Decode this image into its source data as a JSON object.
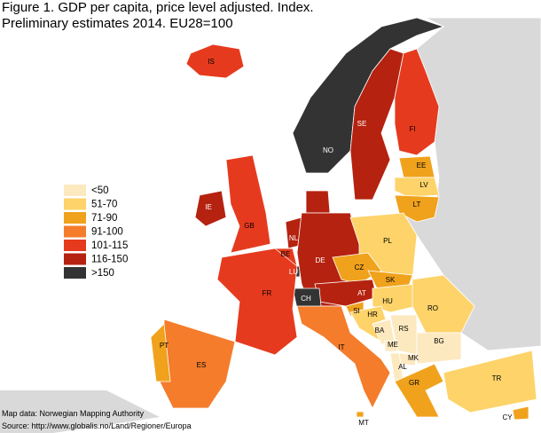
{
  "title": [
    "Figure 1. GDP per capita, price level adjusted. Index.",
    "Preliminary estimates 2014. EU28=100"
  ],
  "legend": [
    {
      "label": "<50",
      "color": "#fde9c0"
    },
    {
      "label": "51-70",
      "color": "#fdd36a"
    },
    {
      "label": "71-90",
      "color": "#f0a21c"
    },
    {
      "label": "91-100",
      "color": "#f47c2b"
    },
    {
      "label": "101-115",
      "color": "#e63a1e"
    },
    {
      "label": "116-150",
      "color": "#b5220f"
    },
    {
      "label": ">150",
      "color": "#333333"
    }
  ],
  "countries": [
    {
      "code": "IS",
      "color": "#e63a1e"
    },
    {
      "code": "NO",
      "color": "#333333"
    },
    {
      "code": "SE",
      "color": "#b5220f"
    },
    {
      "code": "FI",
      "color": "#e63a1e"
    },
    {
      "code": "EE",
      "color": "#f0a21c"
    },
    {
      "code": "LV",
      "color": "#fdd36a"
    },
    {
      "code": "LT",
      "color": "#f0a21c"
    },
    {
      "code": "IE",
      "color": "#b5220f"
    },
    {
      "code": "GB",
      "color": "#e63a1e"
    },
    {
      "code": "NL",
      "color": "#b5220f"
    },
    {
      "code": "BE",
      "color": "#e63a1e"
    },
    {
      "code": "LU",
      "color": "#333333"
    },
    {
      "code": "DE",
      "color": "#b5220f"
    },
    {
      "code": "PL",
      "color": "#fdd36a"
    },
    {
      "code": "CZ",
      "color": "#f0a21c"
    },
    {
      "code": "SK",
      "color": "#f0a21c"
    },
    {
      "code": "AT",
      "color": "#b5220f"
    },
    {
      "code": "CH",
      "color": "#333333"
    },
    {
      "code": "FR",
      "color": "#e63a1e"
    },
    {
      "code": "HU",
      "color": "#fdd36a"
    },
    {
      "code": "RO",
      "color": "#fdd36a"
    },
    {
      "code": "SI",
      "color": "#f0a21c"
    },
    {
      "code": "HR",
      "color": "#fdd36a"
    },
    {
      "code": "BA",
      "color": "#fde9c0"
    },
    {
      "code": "RS",
      "color": "#fde9c0"
    },
    {
      "code": "BG",
      "color": "#fde9c0"
    },
    {
      "code": "ME",
      "color": "#fde9c0"
    },
    {
      "code": "MK",
      "color": "#fde9c0"
    },
    {
      "code": "AL",
      "color": "#fde9c0"
    },
    {
      "code": "GR",
      "color": "#f0a21c"
    },
    {
      "code": "IT",
      "color": "#f47c2b"
    },
    {
      "code": "ES",
      "color": "#f47c2b"
    },
    {
      "code": "PT",
      "color": "#f0a21c"
    },
    {
      "code": "MT",
      "color": "#f0a21c"
    },
    {
      "code": "CY",
      "color": "#f0a21c"
    },
    {
      "code": "TR",
      "color": "#fdd36a"
    }
  ],
  "sources": [
    "Map data: Norwegian Mapping Authority",
    "Source: http://www.globalis.no/Land/Regioner/Europa"
  ]
}
